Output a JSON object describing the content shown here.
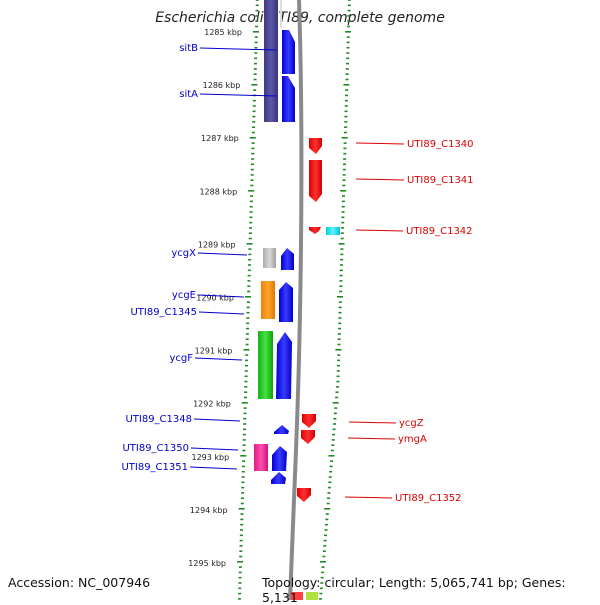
{
  "title": "Escherichia coli UTI89, complete genome",
  "footer": {
    "accession": "Accession: NC_007946",
    "topology": "Topology: circular; Length: 5,065,741 bp; Genes: 5,131"
  },
  "colors": {
    "forward": "#0000ff",
    "reverse": "#ff0000",
    "label_forward": "#0000cc",
    "label_reverse": "#dd0000",
    "backbone": "#888888",
    "ticks": "#228822"
  },
  "ticks": [
    {
      "label": "1285 kbp",
      "kbp": 1285
    },
    {
      "label": "1286 kbp",
      "kbp": 1286
    },
    {
      "label": "1287 kbp",
      "kbp": 1287
    },
    {
      "label": "1288 kbp",
      "kbp": 1288
    },
    {
      "label": "1289 kbp",
      "kbp": 1289
    },
    {
      "label": "1290 kbp",
      "kbp": 1290
    },
    {
      "label": "1291 kbp",
      "kbp": 1291
    },
    {
      "label": "1292 kbp",
      "kbp": 1292
    },
    {
      "label": "1293 kbp",
      "kbp": 1293
    },
    {
      "label": "1294 kbp",
      "kbp": 1294
    },
    {
      "label": "1295 kbp",
      "kbp": 1295
    }
  ],
  "genes_forward": [
    {
      "name": "sitB",
      "labeled": true
    },
    {
      "name": "sitA",
      "labeled": true
    },
    {
      "name": "ycgX",
      "labeled": true
    },
    {
      "name": "ycgE",
      "labeled": true
    },
    {
      "name": "UTI89_C1345",
      "labeled": true
    },
    {
      "name": "ycgF",
      "labeled": true
    },
    {
      "name": "UTI89_C1348",
      "labeled": true
    },
    {
      "name": "UTI89_C1350",
      "labeled": true
    },
    {
      "name": "UTI89_C1351",
      "labeled": true
    }
  ],
  "genes_reverse": [
    {
      "name": "UTI89_C1340",
      "labeled": true
    },
    {
      "name": "UTI89_C1341",
      "labeled": true
    },
    {
      "name": "UTI89_C1342",
      "labeled": true
    },
    {
      "name": "ycgZ",
      "labeled": true
    },
    {
      "name": "ymgA",
      "labeled": true
    },
    {
      "name": "UTI89_C1352",
      "labeled": true
    }
  ]
}
